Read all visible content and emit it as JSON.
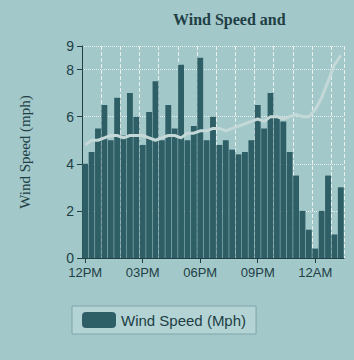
{
  "chart_data": {
    "type": "bar",
    "title": "Wind Speed and",
    "y_label": "Wind Speed (mph)",
    "categories": [
      "12PM",
      null,
      null,
      null,
      null,
      null,
      null,
      null,
      null,
      "03PM",
      null,
      null,
      null,
      null,
      null,
      null,
      null,
      null,
      "06PM",
      null,
      null,
      null,
      null,
      null,
      null,
      null,
      null,
      "09PM",
      null,
      null,
      null,
      null,
      null,
      null,
      null,
      null,
      "12AM",
      null,
      null,
      null,
      null
    ],
    "series": [
      {
        "name": "Wind Speed (Mph)",
        "type": "bar",
        "color": "#2f5f66",
        "values": [
          4.0,
          4.5,
          5.5,
          6.5,
          5.0,
          6.8,
          5.2,
          7.0,
          6.0,
          4.8,
          6.2,
          7.5,
          5.0,
          6.5,
          5.5,
          8.2,
          5.0,
          5.6,
          8.5,
          5.0,
          6.0,
          4.8,
          5.0,
          4.6,
          4.4,
          4.5,
          5.0,
          6.5,
          5.5,
          7.0,
          6.0,
          5.8,
          4.5,
          3.5,
          2.0,
          1.2,
          0.4,
          2.0,
          3.5,
          1.0,
          3.0
        ]
      },
      {
        "type": "line",
        "color": "#c4d8d8",
        "values": [
          4.8,
          5.0,
          5.0,
          5.1,
          5.2,
          5.2,
          5.1,
          5.2,
          5.2,
          5.2,
          5.1,
          5.0,
          5.1,
          5.2,
          5.2,
          5.1,
          5.3,
          5.3,
          5.4,
          5.4,
          5.5,
          5.5,
          5.4,
          5.5,
          5.6,
          5.7,
          5.8,
          5.9,
          5.8,
          6.0,
          6.0,
          5.9,
          6.0,
          6.1,
          6.0,
          6.0,
          6.3,
          6.8,
          7.5,
          8.2,
          8.6
        ]
      }
    ],
    "ylim": [
      0,
      9
    ],
    "yticks": [
      0,
      2,
      4,
      6,
      8
    ],
    "grid": true,
    "legend": "bottom"
  }
}
